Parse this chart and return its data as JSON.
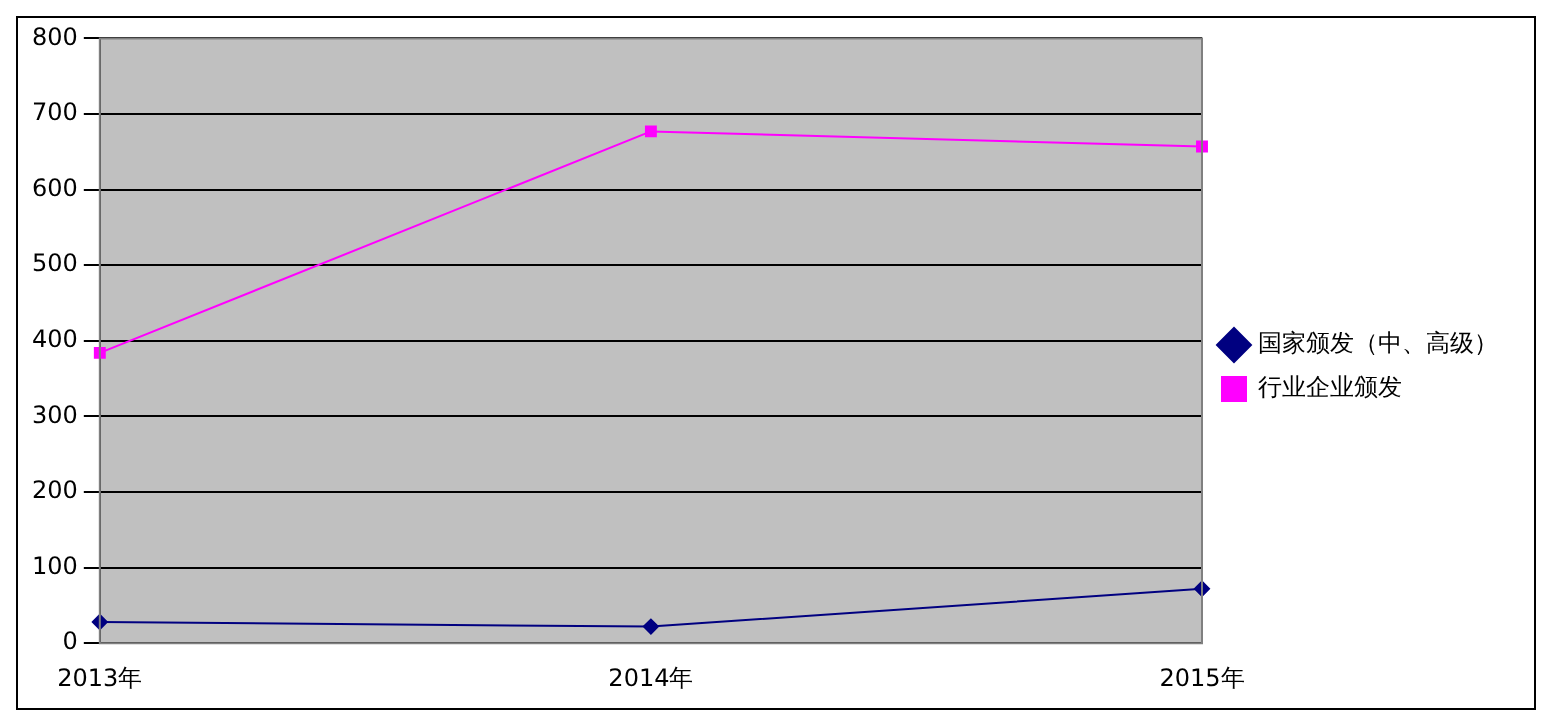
{
  "chart_data": {
    "type": "line",
    "categories": [
      "2013年",
      "2014年",
      "2015年"
    ],
    "series": [
      {
        "name": "国家颁发（中、高级）",
        "color": "#000080",
        "values": [
          28,
          22,
          72
        ],
        "marker": "diamond"
      },
      {
        "name": "行业企业颁发",
        "color": "#ff00ff",
        "values": [
          384,
          677,
          657
        ],
        "marker": "square"
      }
    ],
    "ylim": [
      0,
      800
    ],
    "yticks": [
      0,
      100,
      200,
      300,
      400,
      500,
      600,
      700,
      800
    ],
    "grid": "y",
    "legend": "right",
    "line_style": "solid"
  }
}
